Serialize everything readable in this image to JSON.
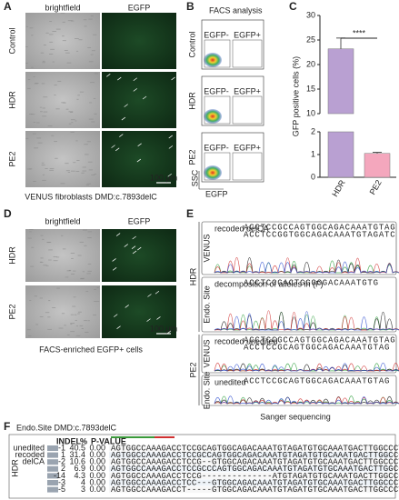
{
  "panels": {
    "A": {
      "label": "A",
      "columns": [
        "brightfield",
        "EGFP"
      ],
      "rows": [
        "Control",
        "HDR",
        "PE2"
      ],
      "scale_bar": "100 µm",
      "caption": "VENUS fibroblasts DMD:c.7893delC"
    },
    "B": {
      "label": "B",
      "title": "FACS analysis",
      "rows": [
        "Control",
        "HDR",
        "PE2"
      ],
      "gates": [
        "EGFP-",
        "EGFP+"
      ],
      "y_axis": "SSC",
      "x_axis": "EGFP"
    },
    "D": {
      "label": "D",
      "columns": [
        "brightfield",
        "EGFP"
      ],
      "rows": [
        "HDR",
        "PE2"
      ],
      "scale_bar": "100 µm",
      "caption": "FACS-enriched EGFP+ cells"
    },
    "E": {
      "label": "E",
      "groups": [
        {
          "name": "HDR",
          "tracks": [
            {
              "site": "VENUS",
              "note": "recoded delCA",
              "sequences": [
                "ACCTCCGCCAGTGGCAGACAAATGTAG",
                "ACCTCCGGTGGCAGACAAATGTAGATC"
              ]
            },
            {
              "site": "Endo. Site",
              "note": "decomposition of alleles in (F)",
              "sequences": [
                "ACCTCCGACTGGGGGACAAATGTG"
              ]
            }
          ]
        },
        {
          "name": "PE2",
          "tracks": [
            {
              "site": "VENUS",
              "note": "recoded unedited",
              "sequences": [
                "ACCTCCGCCAGTGGCAGACAAATGTAG",
                "ACCTCCGCAGTGGCAGACAAATGTAG"
              ]
            },
            {
              "site": "Endo. Site",
              "note": "unedited",
              "sequences": [
                "ACCTCCGCAGTGGCAGACAAATGTAG"
              ]
            }
          ]
        }
      ],
      "caption": "Sanger sequencing"
    },
    "F": {
      "label": "F",
      "title": "Endo.Site DMD:c.7893delC",
      "group": "HDR",
      "allele_labels": [
        "unedited",
        "recoded",
        "delCA"
      ],
      "header": [
        "INDEL",
        "%",
        "P-VALUE"
      ],
      "rows": [
        [
          -1,
          40.5,
          "0.00",
          "AGTGGCCAAAGACCTCCGCAGTGGCAGACAAATGTAGATGTGCAAATGACTTGGCCCTGAAACTTCTCCGG"
        ],
        [
          1,
          31.4,
          "0.00",
          "AGTGGCCAAAGACCTCCGCCAGTGGCAGACAAATGTAGATGTGCAAATGACTTGGCCCTGAAACTTCTCCG"
        ],
        [
          -2,
          10.6,
          "0.00",
          "AGTGGCCAAAGACCTCCG--GTGGCAGACAAATGTAGATGTGCAAATGACTTGGCCCTGAAACTTCTCCGG"
        ],
        [
          2,
          6.9,
          "0.00",
          "AGTGGCCAAAGACCTCCGCCCAGTGGCAGACAAATGTAGATGTGCAAATGACTTGGCCCTGAAACTTCTCC"
        ],
        [
          -14,
          4.3,
          "0.00",
          "AGTGGCCAAAGACCTCCG--------------ATGTAGATGTGCAAATGACTTGGCCCTGAAACTTCTCCGG"
        ],
        [
          -3,
          4.0,
          "0.00",
          "AGTGGCCAAAGACCTCC---GTGGCAGACAAATGTAGATGTGCAAATGACTTGGCCCTGAAACTTCTCCGG"
        ],
        [
          -5,
          3.0,
          "0.00",
          "AGTGGCCAAAGACCT-----GTGGCAGACAAATGTAGATGTGCAAATGACTTGGCCCTGAAACTTCTCCGG"
        ]
      ]
    }
  },
  "chart_data": {
    "type": "bar",
    "label": "C",
    "categories": [
      "HDR",
      "PE2"
    ],
    "values": [
      23.2,
      1.05
    ],
    "errors": [
      2.2,
      0.05
    ],
    "colors": [
      "#b9a0d2",
      "#f4a7bd"
    ],
    "y_label": "GFP positive cells (%)",
    "ylim": [
      0,
      30
    ],
    "ybreak": [
      2,
      10
    ],
    "yticks": [
      0,
      1,
      2,
      10,
      15,
      20,
      25,
      30
    ],
    "annotation": "****"
  }
}
